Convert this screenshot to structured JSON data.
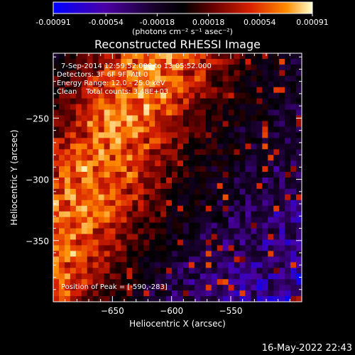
{
  "chart_data": {
    "type": "heatmap",
    "title": "Reconstructed RHESSI Image",
    "xlabel": "Heliocentric X (arcsec)",
    "ylabel": "Heliocentric Y (arcsec)",
    "xlim": [
      -700,
      -490
    ],
    "ylim": [
      -400,
      -197
    ],
    "xticks": [
      -650,
      -600,
      -550
    ],
    "yticks": [
      -250,
      -300,
      -350
    ],
    "grid": false,
    "colorbar": {
      "position": "top",
      "min": -0.00091,
      "max": 0.00091,
      "tick_values": [
        -0.00091,
        -0.00054,
        -0.00018,
        0.00018,
        0.00054,
        0.00091
      ],
      "tick_labels": [
        "-0.00091",
        "-0.00054",
        "-0.00018",
        "0.00018",
        "0.00054",
        "0.00091"
      ],
      "unit_label": "(photons cm⁻² s⁻¹ asec⁻²)",
      "colors": [
        "#0000ff",
        "#4b00a6",
        "#1a0030",
        "#000000",
        "#6a0000",
        "#d82000",
        "#ff8c00",
        "#ffffd0"
      ]
    },
    "annotations": [
      "7-Sep-2014 12:59:52.000 to 13:05:52.000",
      "Detectors: 3F 6F 9F, Att 0",
      "Energy Range: 12.0 - 25.0 keV",
      "Clean    Total counts: 3.48E+03"
    ],
    "peak_label": "Position of Peak = [-590,-283]",
    "peak": {
      "x": -590,
      "y": -283
    }
  },
  "footer_timestamp": "16-May-2022 22:43"
}
